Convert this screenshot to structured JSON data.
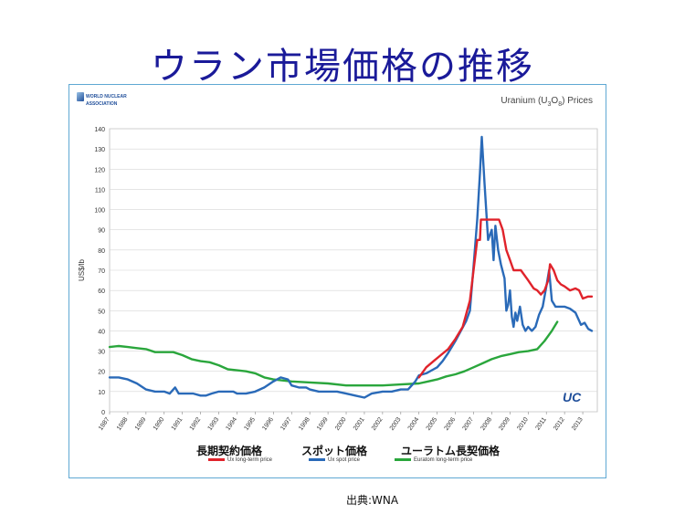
{
  "slide": {
    "title": "ウラン市場価格の推移",
    "source": "出典:WNA"
  },
  "chart_frame": {
    "logo_line1": "WORLD NUCLEAR",
    "logo_line2": "ASSOCIATION",
    "heading_pre": "Uranium (U",
    "heading_sub1": "3",
    "heading_mid": "O",
    "heading_sub2": "8",
    "heading_post": ") Prices",
    "watermark": "UC"
  },
  "legend_jp": {
    "long_term": "長期契約価格",
    "spot": "スポット価格",
    "euratom": "ユーラトム長契価格"
  },
  "colors": {
    "long_term": "#e0232b",
    "spot": "#2a6ab8",
    "euratom": "#2aa63c",
    "grid": "#d6d6d6"
  },
  "chart_data": {
    "type": "line",
    "ylabel": "US$/lb",
    "ylim": [
      0,
      140
    ],
    "yticks": [
      0,
      10,
      20,
      30,
      40,
      50,
      60,
      70,
      80,
      90,
      100,
      110,
      120,
      130,
      140
    ],
    "xlim": [
      1987,
      2013.8
    ],
    "xticks": [
      1987,
      1988,
      1989,
      1990,
      1991,
      1992,
      1993,
      1994,
      1995,
      1996,
      1997,
      1998,
      1999,
      2000,
      2001,
      2002,
      2003,
      2004,
      2005,
      2006,
      2007,
      2008,
      2009,
      2010,
      2011,
      2012,
      2013
    ],
    "grid": true,
    "legend": "bottom",
    "series": [
      {
        "key": "long_term",
        "name": "Ux long-term price",
        "points": [
          [
            2004.0,
            17
          ],
          [
            2004.4,
            22
          ],
          [
            2004.8,
            25
          ],
          [
            2005.2,
            28
          ],
          [
            2005.6,
            31
          ],
          [
            2006.0,
            36
          ],
          [
            2006.4,
            42
          ],
          [
            2006.8,
            55
          ],
          [
            2007.0,
            70
          ],
          [
            2007.2,
            85
          ],
          [
            2007.35,
            85
          ],
          [
            2007.4,
            95
          ],
          [
            2007.7,
            95
          ],
          [
            2008.0,
            95
          ],
          [
            2008.4,
            95
          ],
          [
            2008.6,
            90
          ],
          [
            2008.8,
            80
          ],
          [
            2009.0,
            75
          ],
          [
            2009.2,
            70
          ],
          [
            2009.6,
            70
          ],
          [
            2010.0,
            65
          ],
          [
            2010.3,
            61
          ],
          [
            2010.5,
            60
          ],
          [
            2010.7,
            58
          ],
          [
            2010.9,
            60
          ],
          [
            2011.1,
            65
          ],
          [
            2011.2,
            73
          ],
          [
            2011.4,
            70
          ],
          [
            2011.6,
            65
          ],
          [
            2011.8,
            63
          ],
          [
            2012.0,
            62
          ],
          [
            2012.3,
            60
          ],
          [
            2012.6,
            61
          ],
          [
            2012.8,
            60
          ],
          [
            2013.0,
            56
          ],
          [
            2013.3,
            57
          ],
          [
            2013.5,
            57
          ]
        ]
      },
      {
        "key": "spot",
        "name": "Ux spot price",
        "points": [
          [
            1987.0,
            17
          ],
          [
            1987.5,
            17
          ],
          [
            1988.0,
            16
          ],
          [
            1988.5,
            14
          ],
          [
            1989.0,
            11
          ],
          [
            1989.5,
            10
          ],
          [
            1990.0,
            10
          ],
          [
            1990.3,
            9
          ],
          [
            1990.6,
            12
          ],
          [
            1990.8,
            9
          ],
          [
            1991.2,
            9
          ],
          [
            1991.6,
            9
          ],
          [
            1992.0,
            8
          ],
          [
            1992.3,
            8
          ],
          [
            1992.6,
            9
          ],
          [
            1993.0,
            10
          ],
          [
            1993.4,
            10
          ],
          [
            1993.8,
            10
          ],
          [
            1994.0,
            9
          ],
          [
            1994.5,
            9
          ],
          [
            1995.0,
            10
          ],
          [
            1995.5,
            12
          ],
          [
            1996.0,
            15
          ],
          [
            1996.4,
            17
          ],
          [
            1996.8,
            16
          ],
          [
            1997.0,
            13
          ],
          [
            1997.4,
            12
          ],
          [
            1997.8,
            12
          ],
          [
            1998.0,
            11
          ],
          [
            1998.5,
            10
          ],
          [
            1999.0,
            10
          ],
          [
            1999.5,
            10
          ],
          [
            2000.0,
            9
          ],
          [
            2000.5,
            8
          ],
          [
            2001.0,
            7
          ],
          [
            2001.4,
            9
          ],
          [
            2002.0,
            10
          ],
          [
            2002.5,
            10
          ],
          [
            2003.0,
            11
          ],
          [
            2003.4,
            11
          ],
          [
            2003.8,
            15
          ],
          [
            2004.0,
            18
          ],
          [
            2004.4,
            19
          ],
          [
            2004.8,
            21
          ],
          [
            2005.0,
            22
          ],
          [
            2005.3,
            25
          ],
          [
            2005.6,
            29
          ],
          [
            2006.0,
            35
          ],
          [
            2006.3,
            40
          ],
          [
            2006.6,
            45
          ],
          [
            2006.8,
            50
          ],
          [
            2007.0,
            72
          ],
          [
            2007.2,
            95
          ],
          [
            2007.35,
            118
          ],
          [
            2007.45,
            136
          ],
          [
            2007.6,
            113
          ],
          [
            2007.8,
            85
          ],
          [
            2008.0,
            90
          ],
          [
            2008.1,
            75
          ],
          [
            2008.2,
            92
          ],
          [
            2008.35,
            80
          ],
          [
            2008.5,
            73
          ],
          [
            2008.7,
            66
          ],
          [
            2008.8,
            50
          ],
          [
            2008.9,
            53
          ],
          [
            2009.0,
            60
          ],
          [
            2009.1,
            47
          ],
          [
            2009.2,
            42
          ],
          [
            2009.3,
            49
          ],
          [
            2009.4,
            45
          ],
          [
            2009.55,
            52
          ],
          [
            2009.7,
            43
          ],
          [
            2009.85,
            40
          ],
          [
            2010.0,
            42
          ],
          [
            2010.2,
            40
          ],
          [
            2010.4,
            42
          ],
          [
            2010.6,
            48
          ],
          [
            2010.8,
            52
          ],
          [
            2011.0,
            62
          ],
          [
            2011.15,
            70
          ],
          [
            2011.3,
            55
          ],
          [
            2011.5,
            52
          ],
          [
            2011.8,
            52
          ],
          [
            2012.0,
            52
          ],
          [
            2012.3,
            51
          ],
          [
            2012.6,
            49
          ],
          [
            2012.9,
            43
          ],
          [
            2013.1,
            44
          ],
          [
            2013.3,
            41
          ],
          [
            2013.5,
            40
          ]
        ]
      },
      {
        "key": "euratom",
        "name": "Euratom long-term price",
        "points": [
          [
            1987.0,
            32
          ],
          [
            1987.5,
            32.5
          ],
          [
            1988.0,
            32
          ],
          [
            1988.5,
            31.5
          ],
          [
            1989.0,
            31
          ],
          [
            1989.5,
            29.5
          ],
          [
            1990.0,
            29.5
          ],
          [
            1990.5,
            29.5
          ],
          [
            1991.0,
            28
          ],
          [
            1991.5,
            26
          ],
          [
            1992.0,
            25
          ],
          [
            1992.5,
            24.5
          ],
          [
            1993.0,
            23
          ],
          [
            1993.5,
            21
          ],
          [
            1994.0,
            20.5
          ],
          [
            1994.5,
            20
          ],
          [
            1995.0,
            19
          ],
          [
            1995.5,
            17
          ],
          [
            1996.0,
            16
          ],
          [
            1996.5,
            15.5
          ],
          [
            1997.0,
            15
          ],
          [
            1998.0,
            14.5
          ],
          [
            1999.0,
            14
          ],
          [
            2000.0,
            13
          ],
          [
            2001.0,
            13
          ],
          [
            2002.0,
            13
          ],
          [
            2003.0,
            13.5
          ],
          [
            2004.0,
            14
          ],
          [
            2004.5,
            15
          ],
          [
            2005.0,
            16
          ],
          [
            2005.5,
            17.5
          ],
          [
            2006.0,
            18.5
          ],
          [
            2006.5,
            20
          ],
          [
            2007.0,
            22
          ],
          [
            2007.5,
            24
          ],
          [
            2008.0,
            26
          ],
          [
            2008.5,
            27.5
          ],
          [
            2009.0,
            28.5
          ],
          [
            2009.5,
            29.5
          ],
          [
            2010.0,
            30
          ],
          [
            2010.5,
            31
          ],
          [
            2010.9,
            35
          ],
          [
            2011.3,
            40
          ],
          [
            2011.6,
            44.5
          ]
        ]
      }
    ]
  }
}
